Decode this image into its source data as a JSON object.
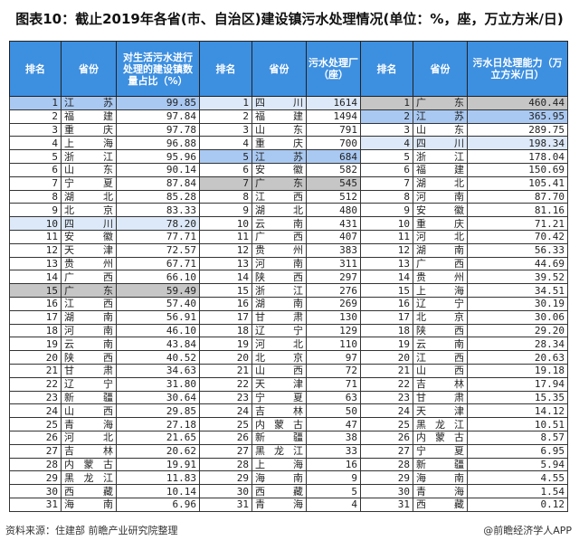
{
  "title": "图表10：截止2019年各省(市、自治区)建设镇污水处理情况(单位：%，座，万立方米/日)",
  "headers": [
    "排名",
    "省份",
    "对生活污水进行处理的建设镇数量占比（%）",
    "排名",
    "省份",
    "污水处理厂（座）",
    "排名",
    "省份",
    "污水日处理能力（万立方米/日）"
  ],
  "highlight_colors": {
    "江苏": "#a9c9f2",
    "四川": "#dde9f8",
    "广东": "#c6c6c6"
  },
  "ratio": [
    [
      "江苏",
      "99.85"
    ],
    [
      "福建",
      "97.84"
    ],
    [
      "重庆",
      "97.78"
    ],
    [
      "上海",
      "96.88"
    ],
    [
      "浙江",
      "95.96"
    ],
    [
      "山东",
      "90.14"
    ],
    [
      "宁夏",
      "87.84"
    ],
    [
      "湖北",
      "85.28"
    ],
    [
      "北京",
      "83.33"
    ],
    [
      "四川",
      "78.20"
    ],
    [
      "安徽",
      "77.71"
    ],
    [
      "天津",
      "72.57"
    ],
    [
      "贵州",
      "67.71"
    ],
    [
      "广西",
      "66.10"
    ],
    [
      "广东",
      "59.49"
    ],
    [
      "江西",
      "57.40"
    ],
    [
      "湖南",
      "56.91"
    ],
    [
      "河南",
      "46.10"
    ],
    [
      "云南",
      "43.84"
    ],
    [
      "陕西",
      "40.52"
    ],
    [
      "甘肃",
      "34.63"
    ],
    [
      "辽宁",
      "31.80"
    ],
    [
      "新疆",
      "30.64"
    ],
    [
      "山西",
      "29.85"
    ],
    [
      "青海",
      "27.18"
    ],
    [
      "河北",
      "21.65"
    ],
    [
      "吉林",
      "20.62"
    ],
    [
      "内蒙古",
      "19.91"
    ],
    [
      "黑龙江",
      "11.83"
    ],
    [
      "西藏",
      "10.14"
    ],
    [
      "海南",
      "6.96"
    ]
  ],
  "plants": [
    [
      "四川",
      "1614"
    ],
    [
      "福建",
      "1494"
    ],
    [
      "山东",
      "791"
    ],
    [
      "重庆",
      "700"
    ],
    [
      "江苏",
      "684"
    ],
    [
      "安徽",
      "582"
    ],
    [
      "广东",
      "545"
    ],
    [
      "江西",
      "512"
    ],
    [
      "湖北",
      "480"
    ],
    [
      "云南",
      "431"
    ],
    [
      "广西",
      "407"
    ],
    [
      "贵州",
      "383"
    ],
    [
      "河南",
      "311"
    ],
    [
      "陕西",
      "297"
    ],
    [
      "浙江",
      "276"
    ],
    [
      "湖南",
      "269"
    ],
    [
      "甘肃",
      "130"
    ],
    [
      "辽宁",
      "129"
    ],
    [
      "河北",
      "110"
    ],
    [
      "北京",
      "97"
    ],
    [
      "山西",
      "72"
    ],
    [
      "天津",
      "71"
    ],
    [
      "宁夏",
      "63"
    ],
    [
      "吉林",
      "50"
    ],
    [
      "内蒙古",
      "47"
    ],
    [
      "新疆",
      "38"
    ],
    [
      "黑龙江",
      "33"
    ],
    [
      "上海",
      "16"
    ],
    [
      "海南",
      "9"
    ],
    [
      "西藏",
      "5"
    ],
    [
      "青海",
      "4"
    ]
  ],
  "capacity": [
    [
      "广东",
      "460.44"
    ],
    [
      "江苏",
      "365.95"
    ],
    [
      "山东",
      "289.75"
    ],
    [
      "四川",
      "198.34"
    ],
    [
      "浙江",
      "178.04"
    ],
    [
      "福建",
      "150.69"
    ],
    [
      "湖北",
      "105.41"
    ],
    [
      "河南",
      "87.70"
    ],
    [
      "安徽",
      "81.16"
    ],
    [
      "重庆",
      "71.21"
    ],
    [
      "河北",
      "70.42"
    ],
    [
      "湖南",
      "56.33"
    ],
    [
      "广西",
      "44.69"
    ],
    [
      "贵州",
      "39.52"
    ],
    [
      "上海",
      "34.51"
    ],
    [
      "辽宁",
      "30.19"
    ],
    [
      "北京",
      "30.06"
    ],
    [
      "陕西",
      "29.20"
    ],
    [
      "云南",
      "28.34"
    ],
    [
      "江西",
      "20.63"
    ],
    [
      "山西",
      "19.18"
    ],
    [
      "吉林",
      "17.94"
    ],
    [
      "甘肃",
      "15.35"
    ],
    [
      "天津",
      "14.12"
    ],
    [
      "黑龙江",
      "10.51"
    ],
    [
      "内蒙古",
      "8.57"
    ],
    [
      "宁夏",
      "6.95"
    ],
    [
      "新疆",
      "5.94"
    ],
    [
      "海南",
      "4.55"
    ],
    [
      "青海",
      "1.54"
    ],
    [
      "西藏",
      "0.12"
    ]
  ],
  "source": "资料来源：住建部 前瞻产业研究院整理",
  "credit": "@前瞻经济学人APP"
}
